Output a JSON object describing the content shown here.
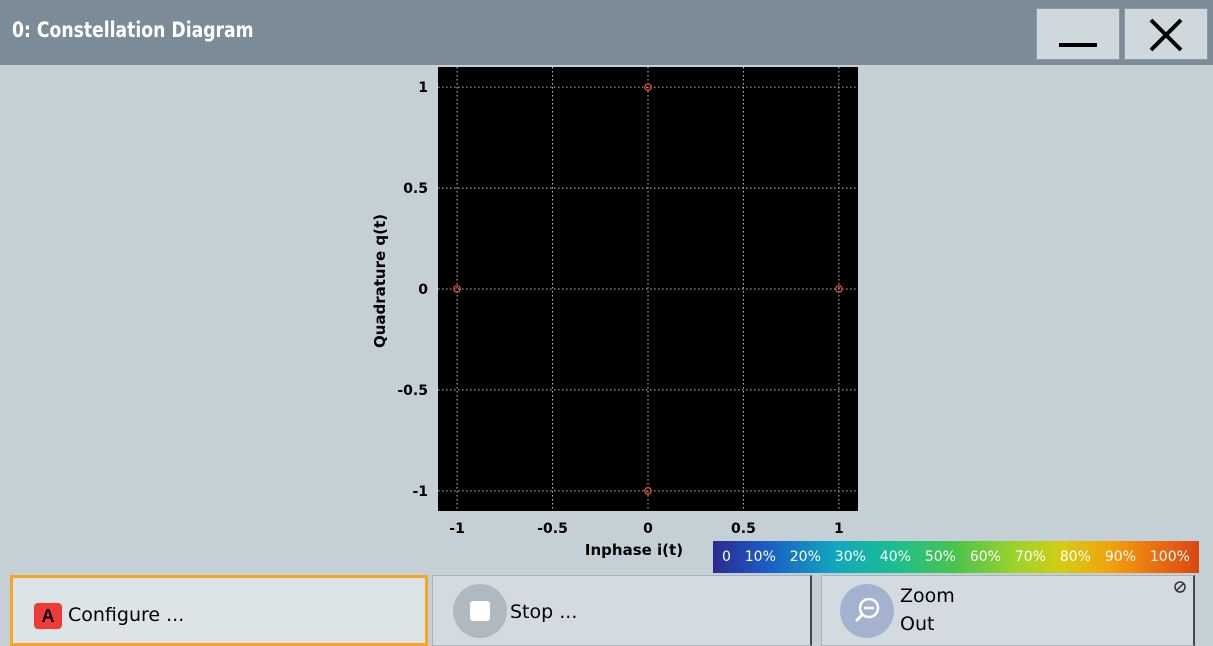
{
  "window": {
    "title": "0: Constellation Diagram",
    "minimize_icon": "minimize-icon",
    "close_icon": "close-icon"
  },
  "chart_data": {
    "type": "scatter",
    "xlabel": "Inphase i(t)",
    "ylabel": "Quadrature q(t)",
    "xlim": [
      -1.1,
      1.1
    ],
    "ylim": [
      -1.1,
      1.1
    ],
    "x_ticks": [
      -1,
      -0.5,
      0,
      0.5,
      1
    ],
    "y_ticks": [
      1,
      0.5,
      0,
      -0.5,
      -1
    ],
    "x_tick_labels": [
      "-1",
      "-0.5",
      "0",
      "0.5",
      "1"
    ],
    "y_tick_labels": [
      "1",
      "0.5",
      "0",
      "-0.5",
      "-1"
    ],
    "grid": true,
    "background": "#000000",
    "marker_color": "#d9482e",
    "points": [
      {
        "x": 0,
        "y": 1
      },
      {
        "x": -1,
        "y": 0
      },
      {
        "x": 1,
        "y": 0
      },
      {
        "x": 0,
        "y": -1
      }
    ]
  },
  "color_scale": {
    "labels": [
      "0",
      "10%",
      "20%",
      "30%",
      "40%",
      "50%",
      "60%",
      "70%",
      "80%",
      "90%",
      "100%"
    ]
  },
  "softkeys": {
    "configure": {
      "badge": "A",
      "label": "Configure ..."
    },
    "stop": {
      "label": "Stop ..."
    },
    "zoom": {
      "label_line1": "Zoom",
      "label_line2": "Out"
    }
  },
  "colors": {
    "titlebar": "#7b8b97",
    "client_background": "#c5d0d6",
    "highlight_border": "#f5a623",
    "badge": "#ef3a3a"
  }
}
